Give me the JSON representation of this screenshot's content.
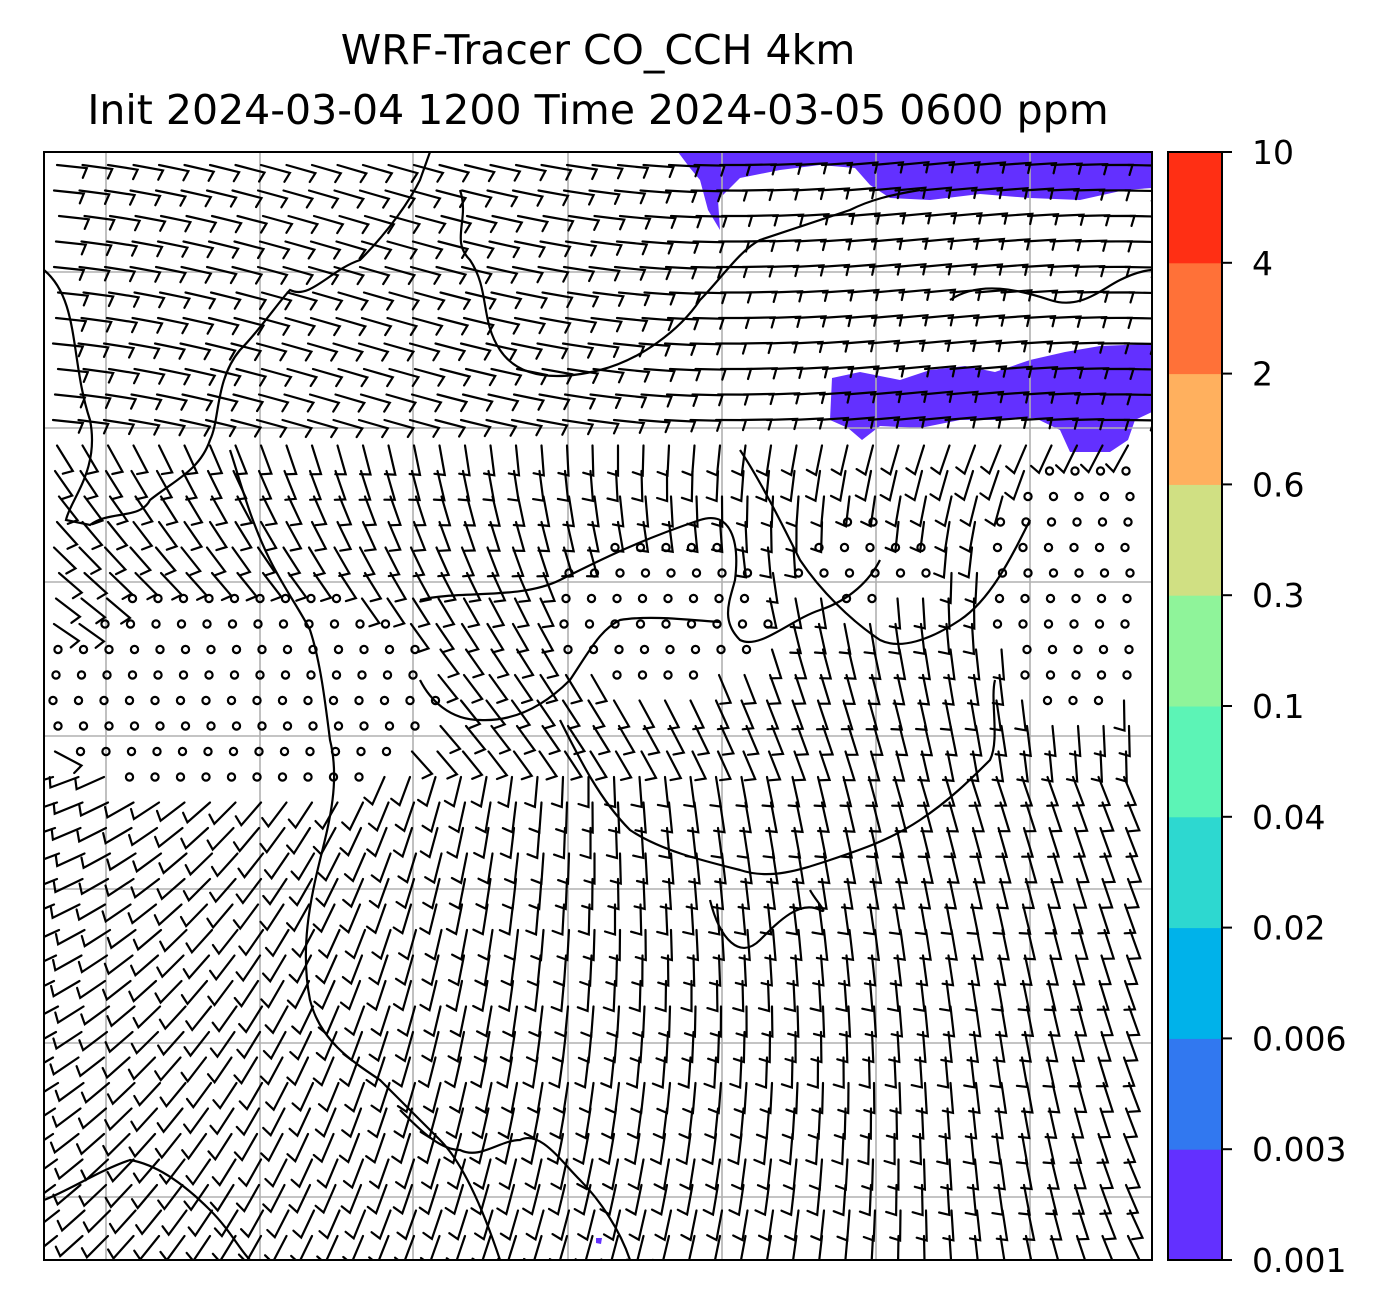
{
  "title": {
    "line1": "WRF-Tracer CO_CCH 4km",
    "line2": "Init 2024-03-04 1200 Time 2024-03-05 0600 ppm"
  },
  "colorbar": {
    "levels": [
      "0.001",
      "0.003",
      "0.006",
      "0.02",
      "0.04",
      "0.1",
      "0.3",
      "0.6",
      "2",
      "4",
      "10"
    ],
    "colors": [
      "#6330ff",
      "#3178f0",
      "#00b2ea",
      "#2dd8d0",
      "#5cf4b6",
      "#8ff49a",
      "#d0e083",
      "#ffb05e",
      "#ff7138",
      "#ff2f14"
    ]
  },
  "map": {
    "gridlines": true,
    "plume_color": "#6330ff",
    "barb_color": "#000000"
  }
}
